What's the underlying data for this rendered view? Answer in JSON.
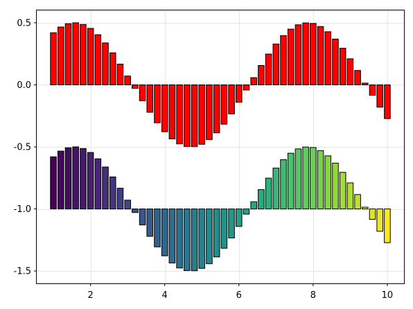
{
  "chart_data": {
    "type": "bar",
    "title": "",
    "xlabel": "",
    "ylabel": "",
    "xlim": [
      0.55,
      10.45
    ],
    "ylim": [
      -1.6,
      0.6
    ],
    "xticks": [
      2,
      4,
      6,
      8,
      10
    ],
    "yticks": [
      -1.5,
      -1.0,
      -0.5,
      0.0,
      0.5
    ],
    "xtick_labels": [
      "2",
      "4",
      "6",
      "8",
      "10"
    ],
    "ytick_labels": [
      "-1.5",
      "-1.0",
      "-0.5",
      "0.0",
      "0.5"
    ],
    "grid": true,
    "bar_width": 0.16,
    "series": [
      {
        "color": "#ff0000",
        "colormap": "none",
        "baseline": 0.0,
        "x": [
          1.0,
          1.2,
          1.4,
          1.6,
          1.8,
          2.0,
          2.2,
          2.4,
          2.6,
          2.8,
          3.0,
          3.2,
          3.4,
          3.6,
          3.8,
          4.0,
          4.2,
          4.4,
          4.6,
          4.8,
          5.0,
          5.2,
          5.4,
          5.6,
          5.8,
          6.0,
          6.2,
          6.4,
          6.6,
          6.8,
          7.0,
          7.2,
          7.4,
          7.6,
          7.8,
          8.0,
          8.2,
          8.4,
          8.6,
          8.8,
          9.0,
          9.2,
          9.4,
          9.6,
          9.8,
          10.0
        ],
        "values": [
          0.42,
          0.466,
          0.493,
          0.5,
          0.487,
          0.455,
          0.404,
          0.338,
          0.258,
          0.167,
          0.071,
          -0.029,
          -0.129,
          -0.221,
          -0.306,
          -0.378,
          -0.436,
          -0.476,
          -0.497,
          -0.498,
          -0.479,
          -0.442,
          -0.387,
          -0.317,
          -0.234,
          -0.141,
          -0.042,
          0.058,
          0.156,
          0.248,
          0.329,
          0.397,
          0.449,
          0.484,
          0.499,
          0.495,
          0.47,
          0.428,
          0.369,
          0.295,
          0.21,
          0.116,
          0.014,
          -0.084,
          -0.18,
          -0.272
        ]
      },
      {
        "color": "viridis",
        "colormap": "viridis",
        "baseline": -1.0,
        "x": [
          1.0,
          1.2,
          1.4,
          1.6,
          1.8,
          2.0,
          2.2,
          2.4,
          2.6,
          2.8,
          3.0,
          3.2,
          3.4,
          3.6,
          3.8,
          4.0,
          4.2,
          4.4,
          4.6,
          4.8,
          5.0,
          5.2,
          5.4,
          5.6,
          5.8,
          6.0,
          6.2,
          6.4,
          6.6,
          6.8,
          7.0,
          7.2,
          7.4,
          7.6,
          7.8,
          8.0,
          8.2,
          8.4,
          8.6,
          8.8,
          9.0,
          9.2,
          9.4,
          9.6,
          9.8,
          10.0
        ],
        "values": [
          -0.58,
          -0.534,
          -0.507,
          -0.5,
          -0.513,
          -0.545,
          -0.596,
          -0.662,
          -0.742,
          -0.833,
          -0.929,
          -1.029,
          -1.129,
          -1.221,
          -1.306,
          -1.378,
          -1.436,
          -1.476,
          -1.497,
          -1.498,
          -1.479,
          -1.442,
          -1.387,
          -1.317,
          -1.234,
          -1.141,
          -1.042,
          -0.942,
          -0.844,
          -0.752,
          -0.671,
          -0.603,
          -0.551,
          -0.516,
          -0.501,
          -0.505,
          -0.53,
          -0.572,
          -0.631,
          -0.705,
          -0.79,
          -0.884,
          -0.986,
          -1.084,
          -1.18,
          -1.272
        ]
      }
    ]
  }
}
